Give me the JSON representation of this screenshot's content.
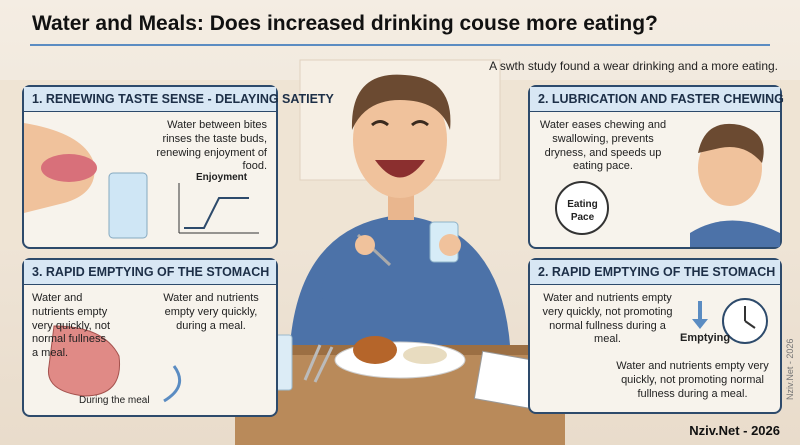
{
  "header": {
    "title": "Water and Meals: Does increased drinking couse more eating?",
    "subtitle": "A swth study found a wear drinking and a more eating."
  },
  "panels": [
    {
      "heading": "1. RENEWING TASTE SENSE - DELAYING SATIETY",
      "body": "Water between bites rinses the taste buds, renewing enjoyment of food.",
      "graph_label": "Enjoyment"
    },
    {
      "heading": "2. LUBRICATION AND FASTER CHEWING",
      "body": "Water eases chewing and swallowing, prevents dryness, and speeds up eating pace.",
      "icon_label": "Eating Pace"
    },
    {
      "heading": "3. RAPID EMPTYING OF THE STOMACH",
      "body_left": "Water and nutrients empty very quickly, not normal fullness a meal.",
      "body_right": "Water and nutrients empty very quickly, during a meal.",
      "caption": "During the meal"
    },
    {
      "heading": "2. RAPID EMPTYING OF THE STOMACH",
      "body": "Water and nutrients empty very quickly, not promoting normal fullness during a meal.",
      "icon_label": "Emptying",
      "footnote": "Water and nutrients empty very quickly, not promoting normal fullness during a meal."
    }
  ],
  "footer": {
    "credit": "Nziv.Net - 2026",
    "watermark": "Nziv.Net - 2026"
  }
}
